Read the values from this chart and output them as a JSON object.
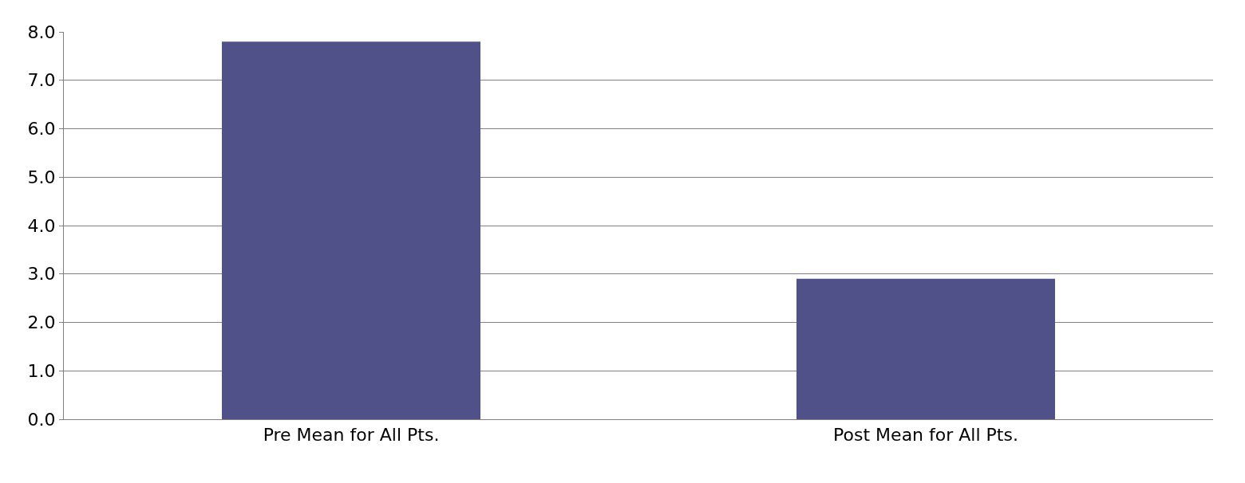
{
  "chart_data": {
    "type": "bar",
    "categories": [
      "Pre Mean for All Pts.",
      "Post Mean for All Pts."
    ],
    "values": [
      7.8,
      2.9
    ],
    "color": "#51518a",
    "ylim": [
      0,
      8
    ],
    "yticks": [
      {
        "value": 0,
        "label": "0.0"
      },
      {
        "value": 1,
        "label": "1.0"
      },
      {
        "value": 2,
        "label": "2.0"
      },
      {
        "value": 3,
        "label": "3.0"
      },
      {
        "value": 4,
        "label": "4.0"
      },
      {
        "value": 5,
        "label": "5.0"
      },
      {
        "value": 6,
        "label": "6.0"
      },
      {
        "value": 7,
        "label": "7.0"
      },
      {
        "value": 8,
        "label": "8.0"
      }
    ],
    "grid": "y"
  }
}
